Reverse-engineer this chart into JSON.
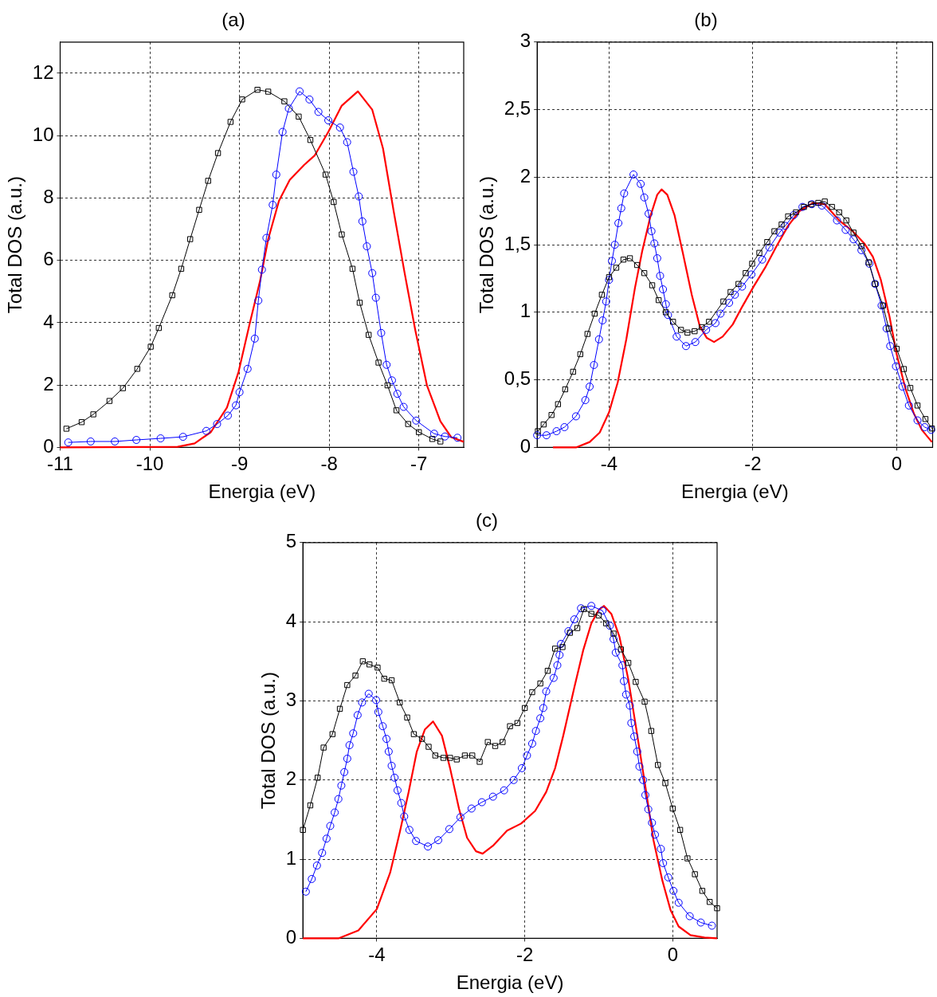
{
  "chart_data": [
    {
      "type": "line",
      "title": "(a)",
      "xlabel": "Energia (eV)",
      "ylabel": "Total DOS (a.u.)",
      "xlim": [
        -11,
        -6.5
      ],
      "ylim": [
        0,
        13
      ],
      "xticks": [
        -11,
        -10,
        -9,
        -8,
        -7
      ],
      "yticks": [
        0,
        2,
        4,
        6,
        8,
        10,
        12
      ],
      "grid": true,
      "legend": false,
      "series": [
        {
          "color": "#000000",
          "marker": "square",
          "x": [
            -10.93,
            -10.76,
            -10.63,
            -10.45,
            -10.3,
            -10.14,
            -9.99,
            -9.9,
            -9.75,
            -9.65,
            -9.55,
            -9.45,
            -9.35,
            -9.24,
            -9.1,
            -8.97,
            -8.8,
            -8.68,
            -8.5,
            -8.34,
            -8.21,
            -8.04,
            -7.95,
            -7.86,
            -7.74,
            -7.66,
            -7.56,
            -7.45,
            -7.35,
            -7.25,
            -7.12,
            -7.0,
            -6.85,
            -6.76
          ],
          "values": [
            0.6,
            0.81,
            1.06,
            1.49,
            1.9,
            2.52,
            3.23,
            3.83,
            4.88,
            5.73,
            6.68,
            7.62,
            8.55,
            9.44,
            10.44,
            11.16,
            11.47,
            11.41,
            11.1,
            10.61,
            9.86,
            8.75,
            7.87,
            6.83,
            5.73,
            4.64,
            3.61,
            2.72,
            1.99,
            1.19,
            0.75,
            0.49,
            0.27,
            0.19
          ]
        },
        {
          "color": "#0000ff",
          "marker": "circle",
          "x": [
            -10.91,
            -10.66,
            -10.39,
            -10.15,
            -9.88,
            -9.63,
            -9.37,
            -9.25,
            -9.13,
            -9.04,
            -9.0,
            -8.91,
            -8.83,
            -8.79,
            -8.75,
            -8.7,
            -8.63,
            -8.59,
            -8.52,
            -8.45,
            -8.33,
            -8.22,
            -8.12,
            -8.01,
            -7.88,
            -7.8,
            -7.73,
            -7.67,
            -7.63,
            -7.58,
            -7.52,
            -7.48,
            -7.42,
            -7.36,
            -7.3,
            -7.24,
            -7.17,
            -7.03,
            -6.83,
            -6.71,
            -6.57
          ],
          "values": [
            0.16,
            0.19,
            0.19,
            0.24,
            0.29,
            0.34,
            0.53,
            0.75,
            1.02,
            1.35,
            1.77,
            2.52,
            3.49,
            4.71,
            5.7,
            6.72,
            7.78,
            8.75,
            10.12,
            10.87,
            11.42,
            11.16,
            10.76,
            10.49,
            10.26,
            9.79,
            8.84,
            8.05,
            7.25,
            6.45,
            5.59,
            4.8,
            3.67,
            2.65,
            2.15,
            1.72,
            1.3,
            0.86,
            0.44,
            0.35,
            0.31
          ]
        },
        {
          "color": "#ff0000",
          "marker": "none",
          "x": [
            -11,
            -9.69,
            -9.5,
            -9.32,
            -9.14,
            -9.01,
            -8.89,
            -8.77,
            -8.68,
            -8.56,
            -8.44,
            -8.28,
            -8.16,
            -8.01,
            -7.86,
            -7.68,
            -7.52,
            -7.4,
            -7.28,
            -7.16,
            -7.04,
            -6.91,
            -6.76,
            -6.64,
            -6.5
          ],
          "values": [
            0,
            0.02,
            0.13,
            0.49,
            1.28,
            2.43,
            3.93,
            5.35,
            6.68,
            7.91,
            8.58,
            9.06,
            9.37,
            10.12,
            10.96,
            11.42,
            10.83,
            9.59,
            7.56,
            5.61,
            3.76,
            1.99,
            0.84,
            0.33,
            0.18
          ]
        }
      ]
    },
    {
      "type": "line",
      "title": "(b)",
      "xlabel": "Energia (eV)",
      "ylabel": "Total DOS (a.u.)",
      "xlim": [
        -5,
        0.5
      ],
      "ylim": [
        0,
        3
      ],
      "xticks": [
        -4,
        -2,
        0
      ],
      "yticks": [
        0,
        {
          "value": 0.5,
          "label": "0,5"
        },
        1,
        {
          "value": 1.5,
          "label": "1,5"
        },
        2,
        {
          "value": 2.5,
          "label": "2,5"
        },
        3
      ],
      "grid": true,
      "legend": false,
      "series": [
        {
          "color": "#000000",
          "marker": "square",
          "x": [
            -4.99,
            -4.91,
            -4.8,
            -4.71,
            -4.61,
            -4.5,
            -4.4,
            -4.3,
            -4.2,
            -4.1,
            -4.0,
            -3.9,
            -3.8,
            -3.71,
            -3.61,
            -3.51,
            -3.4,
            -3.31,
            -3.21,
            -3.11,
            -3.0,
            -2.91,
            -2.81,
            -2.71,
            -2.61,
            -2.41,
            -2.31,
            -2.2,
            -2.1,
            -2.01,
            -1.91,
            -1.8,
            -1.7,
            -1.6,
            -1.51,
            -1.4,
            -1.29,
            -1.19,
            -1.09,
            -1.0,
            -0.9,
            -0.8,
            -0.7,
            -0.6,
            -0.49,
            -0.39,
            -0.3,
            -0.19,
            -0.11,
            0.0,
            0.1,
            0.19,
            0.29,
            0.4,
            0.49
          ],
          "values": [
            0.12,
            0.17,
            0.24,
            0.32,
            0.43,
            0.56,
            0.69,
            0.84,
            0.99,
            1.13,
            1.26,
            1.33,
            1.39,
            1.4,
            1.35,
            1.29,
            1.2,
            1.09,
            1.0,
            0.93,
            0.87,
            0.85,
            0.86,
            0.89,
            0.93,
            1.08,
            1.15,
            1.21,
            1.29,
            1.36,
            1.44,
            1.52,
            1.6,
            1.65,
            1.71,
            1.74,
            1.78,
            1.8,
            1.81,
            1.82,
            1.78,
            1.74,
            1.68,
            1.59,
            1.49,
            1.37,
            1.21,
            1.05,
            0.88,
            0.73,
            0.58,
            0.44,
            0.31,
            0.21,
            0.14
          ]
        },
        {
          "color": "#0000ff",
          "marker": "circle",
          "x": [
            -5.0,
            -4.87,
            -4.73,
            -4.62,
            -4.46,
            -4.33,
            -4.27,
            -4.21,
            -4.14,
            -4.09,
            -4.04,
            -4.0,
            -3.96,
            -3.92,
            -3.87,
            -3.83,
            -3.79,
            -3.66,
            -3.56,
            -3.51,
            -3.45,
            -3.41,
            -3.37,
            -3.33,
            -3.29,
            -3.25,
            -3.21,
            -3.18,
            -3.06,
            -2.93,
            -2.8,
            -2.65,
            -2.52,
            -2.45,
            -2.33,
            -2.25,
            -2.15,
            -2.02,
            -1.87,
            -1.77,
            -1.63,
            -1.55,
            -1.43,
            -1.31,
            -1.18,
            -1.04,
            -0.83,
            -0.71,
            -0.6,
            -0.49,
            -0.38,
            -0.3,
            -0.21,
            -0.14,
            -0.09,
            -0.01,
            0.08,
            0.17,
            0.29,
            0.39,
            0.48
          ],
          "values": [
            0.09,
            0.09,
            0.12,
            0.15,
            0.23,
            0.35,
            0.45,
            0.61,
            0.8,
            0.94,
            1.08,
            1.24,
            1.38,
            1.5,
            1.66,
            1.77,
            1.88,
            2.02,
            1.95,
            1.85,
            1.73,
            1.6,
            1.51,
            1.4,
            1.27,
            1.17,
            1.06,
            0.98,
            0.82,
            0.75,
            0.78,
            0.87,
            0.92,
            0.99,
            1.07,
            1.13,
            1.19,
            1.28,
            1.39,
            1.48,
            1.59,
            1.64,
            1.72,
            1.78,
            1.8,
            1.79,
            1.68,
            1.61,
            1.54,
            1.46,
            1.36,
            1.21,
            1.05,
            0.88,
            0.75,
            0.6,
            0.45,
            0.31,
            0.2,
            0.15,
            0.13
          ]
        },
        {
          "color": "#ff0000",
          "marker": "none",
          "x": [
            -4.78,
            -4.46,
            -4.27,
            -4.13,
            -4.0,
            -3.88,
            -3.76,
            -3.64,
            -3.54,
            -3.42,
            -3.33,
            -3.27,
            -3.19,
            -3.09,
            -2.97,
            -2.85,
            -2.74,
            -2.64,
            -2.54,
            -2.42,
            -2.28,
            -2.15,
            -1.99,
            -1.83,
            -1.67,
            -1.51,
            -1.35,
            -1.16,
            -1.0,
            -0.8,
            -0.61,
            -0.45,
            -0.33,
            -0.22,
            -0.1,
            0.0,
            0.12,
            0.24,
            0.35,
            0.49
          ],
          "values": [
            0.0,
            0.0,
            0.04,
            0.11,
            0.26,
            0.48,
            0.8,
            1.18,
            1.45,
            1.72,
            1.87,
            1.91,
            1.87,
            1.72,
            1.43,
            1.13,
            0.9,
            0.81,
            0.78,
            0.82,
            0.91,
            1.04,
            1.19,
            1.33,
            1.49,
            1.64,
            1.75,
            1.81,
            1.8,
            1.68,
            1.6,
            1.51,
            1.41,
            1.24,
            0.97,
            0.69,
            0.44,
            0.25,
            0.13,
            0.04
          ]
        }
      ]
    },
    {
      "type": "line",
      "title": "(c)",
      "xlabel": "Energia (eV)",
      "ylabel": "Total DOS (a.u.)",
      "xlim": [
        -5,
        0.6
      ],
      "ylim": [
        0,
        5
      ],
      "xticks": [
        -4,
        -2,
        0
      ],
      "yticks": [
        0,
        1,
        2,
        3,
        4,
        5
      ],
      "grid": true,
      "legend": false,
      "series": [
        {
          "color": "#000000",
          "marker": "square",
          "x": [
            -5.0,
            -4.9,
            -4.8,
            -4.72,
            -4.6,
            -4.5,
            -4.4,
            -4.29,
            -4.19,
            -4.1,
            -3.99,
            -3.9,
            -3.8,
            -3.69,
            -3.59,
            -3.5,
            -3.39,
            -3.3,
            -3.21,
            -3.1,
            -3.01,
            -2.92,
            -2.81,
            -2.71,
            -2.61,
            -2.5,
            -2.4,
            -2.3,
            -2.2,
            -2.1,
            -2.0,
            -1.9,
            -1.79,
            -1.69,
            -1.59,
            -1.49,
            -1.39,
            -1.29,
            -1.2,
            -1.1,
            -1.0,
            -0.9,
            -0.8,
            -0.7,
            -0.6,
            -0.5,
            -0.38,
            -0.29,
            -0.2,
            -0.1,
            0.0,
            0.1,
            0.2,
            0.3,
            0.4,
            0.5,
            0.6
          ],
          "values": [
            1.37,
            1.68,
            2.03,
            2.41,
            2.58,
            2.9,
            3.2,
            3.32,
            3.5,
            3.46,
            3.42,
            3.28,
            3.26,
            2.98,
            2.79,
            2.58,
            2.52,
            2.42,
            2.31,
            2.28,
            2.28,
            2.26,
            2.31,
            2.31,
            2.23,
            2.48,
            2.43,
            2.48,
            2.68,
            2.72,
            2.91,
            3.11,
            3.22,
            3.38,
            3.66,
            3.68,
            3.86,
            3.92,
            4.16,
            4.1,
            4.08,
            3.98,
            3.85,
            3.65,
            3.48,
            3.24,
            2.99,
            2.62,
            2.19,
            1.96,
            1.64,
            1.37,
            1.01,
            0.81,
            0.6,
            0.46,
            0.38
          ]
        },
        {
          "color": "#0000ff",
          "marker": "circle",
          "x": [
            -4.96,
            -4.88,
            -4.81,
            -4.74,
            -4.68,
            -4.63,
            -4.57,
            -4.52,
            -4.48,
            -4.44,
            -4.4,
            -4.37,
            -4.32,
            -4.26,
            -4.2,
            -4.11,
            -4.01,
            -3.98,
            -3.92,
            -3.87,
            -3.84,
            -3.8,
            -3.76,
            -3.72,
            -3.67,
            -3.63,
            -3.56,
            -3.47,
            -3.31,
            -3.17,
            -3.02,
            -2.87,
            -2.72,
            -2.58,
            -2.43,
            -2.28,
            -2.15,
            -2.04,
            -1.97,
            -1.9,
            -1.85,
            -1.79,
            -1.75,
            -1.71,
            -1.61,
            -1.56,
            -1.53,
            -1.51,
            -1.41,
            -1.33,
            -1.24,
            -1.1,
            -0.95,
            -0.85,
            -0.8,
            -0.77,
            -0.68,
            -0.66,
            -0.63,
            -0.58,
            -0.56,
            -0.52,
            -0.48,
            -0.45,
            -0.4,
            -0.37,
            -0.33,
            -0.28,
            -0.24,
            -0.16,
            -0.13,
            -0.06,
            0.01,
            0.08,
            0.23,
            0.38,
            0.53
          ],
          "values": [
            0.59,
            0.75,
            0.92,
            1.08,
            1.26,
            1.42,
            1.59,
            1.76,
            1.93,
            2.1,
            2.27,
            2.44,
            2.59,
            2.82,
            2.98,
            3.09,
            3.01,
            2.86,
            2.68,
            2.52,
            2.36,
            2.18,
            2.03,
            1.87,
            1.71,
            1.54,
            1.37,
            1.23,
            1.16,
            1.24,
            1.38,
            1.53,
            1.64,
            1.72,
            1.79,
            1.87,
            2.0,
            2.15,
            2.31,
            2.46,
            2.62,
            2.78,
            2.91,
            3.12,
            3.29,
            3.45,
            3.58,
            3.72,
            3.88,
            4.03,
            4.17,
            4.2,
            4.14,
            3.95,
            3.78,
            3.61,
            3.45,
            3.25,
            3.08,
            2.94,
            2.72,
            2.55,
            2.36,
            2.17,
            2.0,
            1.81,
            1.63,
            1.46,
            1.31,
            1.13,
            0.95,
            0.77,
            0.6,
            0.45,
            0.28,
            0.2,
            0.16
          ]
        },
        {
          "color": "#ff0000",
          "marker": "none",
          "x": [
            -5.0,
            -4.52,
            -4.25,
            -4.0,
            -3.82,
            -3.69,
            -3.57,
            -3.46,
            -3.35,
            -3.24,
            -3.12,
            -3.01,
            -2.89,
            -2.78,
            -2.66,
            -2.57,
            -2.43,
            -2.24,
            -2.05,
            -1.86,
            -1.71,
            -1.59,
            -1.48,
            -1.33,
            -1.21,
            -1.1,
            -1.0,
            -0.93,
            -0.83,
            -0.72,
            -0.6,
            -0.49,
            -0.37,
            -0.26,
            -0.14,
            -0.03,
            0.08,
            0.24,
            0.43,
            0.6
          ],
          "values": [
            0.0,
            0.0,
            0.1,
            0.37,
            0.83,
            1.34,
            1.85,
            2.36,
            2.64,
            2.74,
            2.56,
            2.15,
            1.64,
            1.27,
            1.1,
            1.07,
            1.17,
            1.36,
            1.45,
            1.61,
            1.85,
            2.15,
            2.56,
            3.17,
            3.64,
            3.98,
            4.15,
            4.2,
            4.1,
            3.81,
            3.27,
            2.63,
            1.92,
            1.24,
            0.73,
            0.36,
            0.15,
            0.04,
            0.01,
            0.0
          ]
        }
      ]
    }
  ]
}
